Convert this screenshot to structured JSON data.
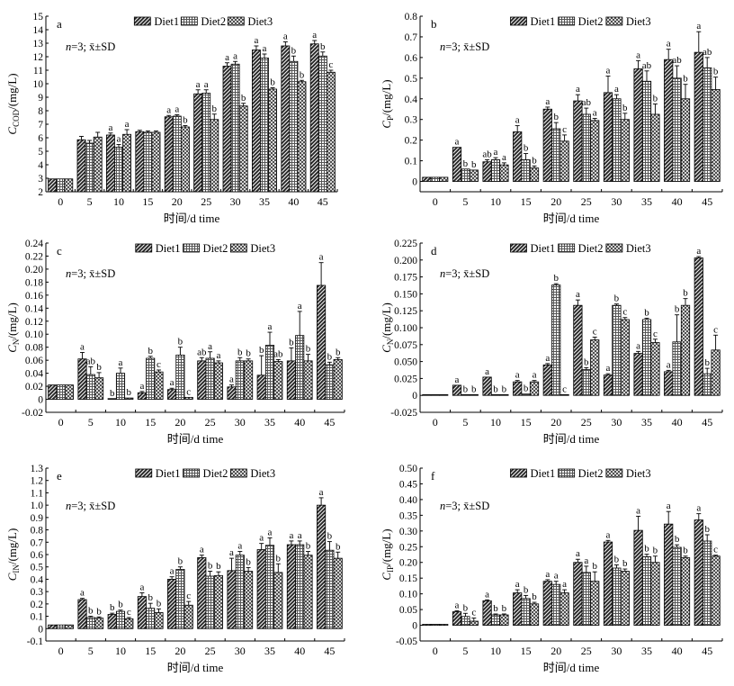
{
  "chart_data": [
    {
      "type": "bar",
      "panel_label": "a",
      "ylabel_main": "C",
      "ylabel_sub": "COD",
      "ylabel_unit": "/(mg/L)",
      "xlabel": "时间/d time",
      "annotation_n": "n",
      "annotation_rest": "=3; x̄±SD",
      "categories": [
        "0",
        "5",
        "10",
        "15",
        "20",
        "25",
        "30",
        "35",
        "40",
        "45"
      ],
      "ylim": [
        2,
        15
      ],
      "yticks": [
        "2",
        "3",
        "4",
        "5",
        "6",
        "7",
        "8",
        "9",
        "10",
        "11",
        "12",
        "13",
        "14",
        "15"
      ],
      "legend": [
        "Diet1",
        "Diet2",
        "Diet3"
      ],
      "series": [
        {
          "name": "Diet1",
          "values": [
            2.95,
            5.85,
            6.2,
            6.45,
            7.55,
            9.25,
            11.3,
            12.5,
            12.8,
            12.95
          ],
          "errors": [
            0,
            0.25,
            0.15,
            0.1,
            0.1,
            0.3,
            0.25,
            0.3,
            0.3,
            0.25
          ],
          "letters": [
            "",
            "",
            "a",
            "",
            "a",
            "a",
            "a",
            "a",
            "a",
            "a"
          ]
        },
        {
          "name": "Diet2",
          "values": [
            2.95,
            5.6,
            5.3,
            6.4,
            7.6,
            9.3,
            11.45,
            11.9,
            11.65,
            12.05
          ],
          "errors": [
            0,
            0.2,
            0.2,
            0.1,
            0.1,
            0.25,
            0.2,
            0.3,
            0.4,
            0.3
          ],
          "letters": [
            "",
            "",
            "a",
            "",
            "a",
            "a",
            "a",
            "a",
            "b",
            "b"
          ]
        },
        {
          "name": "Diet3",
          "values": [
            2.95,
            6.05,
            6.25,
            6.4,
            6.8,
            7.35,
            8.35,
            9.6,
            10.15,
            10.85
          ],
          "errors": [
            0,
            0.35,
            0.35,
            0.1,
            0.1,
            0.4,
            0.2,
            0.1,
            0.1,
            0.15
          ],
          "letters": [
            "",
            "",
            "a",
            "",
            "b",
            "b",
            "b",
            "b",
            "b",
            "c"
          ]
        }
      ]
    },
    {
      "type": "bar",
      "panel_label": "b",
      "ylabel_main": "C",
      "ylabel_sub": "P",
      "ylabel_unit": "/(mg/L)",
      "xlabel": "时间/d time",
      "annotation_n": "n",
      "annotation_rest": "=3; x̄±SD",
      "categories": [
        "0",
        "5",
        "10",
        "15",
        "20",
        "25",
        "30",
        "35",
        "40",
        "45"
      ],
      "ylim": [
        -0.05,
        0.8
      ],
      "yticks": [
        "0",
        "0.1",
        "0.2",
        "0.3",
        "0.4",
        "0.5",
        "0.6",
        "0.7",
        "0.8"
      ],
      "legend": [
        "Diet1",
        "Diet2",
        "Diet3"
      ],
      "series": [
        {
          "name": "Diet1",
          "values": [
            0.02,
            0.165,
            0.095,
            0.24,
            0.35,
            0.39,
            0.43,
            0.545,
            0.59,
            0.625
          ],
          "errors": [
            0,
            0,
            0.01,
            0.03,
            0.01,
            0.03,
            0.08,
            0.04,
            0.05,
            0.1
          ],
          "letters": [
            "",
            "a",
            "ab",
            "a",
            "a",
            "a",
            "a",
            "a",
            "a",
            "a"
          ]
        },
        {
          "name": "Diet2",
          "values": [
            0.02,
            0.06,
            0.105,
            0.105,
            0.255,
            0.325,
            0.4,
            0.485,
            0.5,
            0.55
          ],
          "errors": [
            0,
            0,
            0.01,
            0.03,
            0.03,
            0.03,
            0.02,
            0.05,
            0.06,
            0.05
          ],
          "letters": [
            "",
            "b",
            "a",
            "b",
            "b",
            "ab",
            "a",
            "ab",
            "ab",
            "ab"
          ]
        },
        {
          "name": "Diet3",
          "values": [
            0.02,
            0.055,
            0.08,
            0.065,
            0.195,
            0.295,
            0.3,
            0.325,
            0.4,
            0.445
          ],
          "errors": [
            0,
            0,
            0.01,
            0.01,
            0.03,
            0.01,
            0.03,
            0.05,
            0.07,
            0.06
          ],
          "letters": [
            "",
            "b",
            "a",
            "b",
            "c",
            "a",
            "b",
            "b",
            "b",
            "b"
          ]
        }
      ]
    },
    {
      "type": "bar",
      "panel_label": "c",
      "ylabel_main": "C",
      "ylabel_sub": "N",
      "ylabel_unit": "/(mg/L)",
      "xlabel": "时间/d time",
      "annotation_n": "n",
      "annotation_rest": "=3; x̄±SD",
      "categories": [
        "0",
        "5",
        "10",
        "15",
        "20",
        "25",
        "30",
        "35",
        "40",
        "45"
      ],
      "ylim": [
        -0.02,
        0.24
      ],
      "yticks": [
        "-0.02",
        "0",
        "0.02",
        "0.04",
        "0.06",
        "0.08",
        "0.10",
        "0.12",
        "0.14",
        "0.16",
        "0.18",
        "0.20",
        "0.22",
        "0.24"
      ],
      "legend": [
        "Diet1",
        "Diet2",
        "Diet3"
      ],
      "series": [
        {
          "name": "Diet1",
          "values": [
            0.022,
            0.062,
            0.001,
            0.01,
            0.015,
            0.059,
            0.019,
            0.037,
            0.059,
            0.175
          ],
          "errors": [
            0,
            0.01,
            0,
            0.002,
            0.002,
            0.005,
            0.003,
            0.03,
            0.02,
            0.035
          ],
          "letters": [
            "",
            "a",
            "b",
            "a",
            "a",
            "ab",
            "a",
            "b",
            "b",
            "a"
          ]
        },
        {
          "name": "Diet2",
          "values": [
            0.022,
            0.038,
            0.04,
            0.063,
            0.068,
            0.063,
            0.059,
            0.083,
            0.098,
            0.053
          ],
          "errors": [
            0,
            0.012,
            0.008,
            0.003,
            0.012,
            0.01,
            0.005,
            0.02,
            0.037,
            0.004
          ],
          "letters": [
            "",
            "ab",
            "a",
            "b",
            "b",
            "a",
            "b",
            "a",
            "a",
            "b"
          ]
        },
        {
          "name": "Diet3",
          "values": [
            0.022,
            0.033,
            0.002,
            0.042,
            0.003,
            0.056,
            0.059,
            0.058,
            0.059,
            0.061
          ],
          "errors": [
            0,
            0.008,
            0,
            0.003,
            0,
            0.003,
            0.003,
            0.003,
            0.01,
            0.003
          ],
          "letters": [
            "",
            "b",
            "b",
            "c",
            "c",
            "a",
            "b",
            "ab",
            "b",
            "b"
          ]
        }
      ]
    },
    {
      "type": "bar",
      "panel_label": "d",
      "ylabel_main": "C",
      "ylabel_sub": "N",
      "ylabel_unit": "/(mg/L)",
      "xlabel": "时间/d time",
      "annotation_n": "n",
      "annotation_rest": "=3; x̄±SD",
      "categories": [
        "0",
        "5",
        "10",
        "15",
        "20",
        "25",
        "30",
        "35",
        "40",
        "45"
      ],
      "ylim": [
        -0.025,
        0.225
      ],
      "yticks": [
        "-0.025",
        "0",
        "0.025",
        "0.050",
        "0.075",
        "0.100",
        "0.125",
        "0.150",
        "0.175",
        "0.200",
        "0.225"
      ],
      "legend": [
        "Diet1",
        "Diet2",
        "Diet3"
      ],
      "series": [
        {
          "name": "Diet1",
          "values": [
            0,
            0.015,
            0.027,
            0.02,
            0.045,
            0.133,
            0.03,
            0.062,
            0.035,
            0.203
          ],
          "errors": [
            0,
            0,
            0,
            0.002,
            0.002,
            0.008,
            0.002,
            0.003,
            0.002,
            0.002
          ],
          "letters": [
            "",
            "a",
            "a",
            "a",
            "a",
            "a",
            "a",
            "a",
            "a",
            "a"
          ]
        },
        {
          "name": "Diet2",
          "values": [
            0,
            0.001,
            0.001,
            0.002,
            0.163,
            0.038,
            0.133,
            0.112,
            0.079,
            0.032
          ],
          "errors": [
            0,
            0,
            0,
            0,
            0.002,
            0.003,
            0.002,
            0.002,
            0.04,
            0.008
          ],
          "letters": [
            "",
            "b",
            "b",
            "b",
            "b",
            "b",
            "b",
            "b",
            "b",
            "b"
          ]
        },
        {
          "name": "Diet3",
          "values": [
            0,
            0.001,
            0.001,
            0.02,
            0.001,
            0.082,
            0.112,
            0.078,
            0.133,
            0.067
          ],
          "errors": [
            0,
            0,
            0,
            0.002,
            0,
            0.004,
            0.003,
            0.005,
            0.01,
            0.022
          ],
          "letters": [
            "",
            "b",
            "b",
            "a",
            "c",
            "c",
            "c",
            "c",
            "b",
            "c"
          ]
        }
      ]
    },
    {
      "type": "bar",
      "panel_label": "e",
      "ylabel_main": "C",
      "ylabel_sub": "IN",
      "ylabel_unit": "/(mg/L)",
      "xlabel": "时间/d time",
      "annotation_n": "n",
      "annotation_rest": "=3; x̄±SD",
      "categories": [
        "0",
        "5",
        "10",
        "15",
        "20",
        "25",
        "30",
        "35",
        "40",
        "45"
      ],
      "ylim": [
        -0.1,
        1.3
      ],
      "yticks": [
        "-0.1",
        "0",
        "0.1",
        "0.2",
        "0.3",
        "0.4",
        "0.5",
        "0.6",
        "0.7",
        "0.8",
        "0.9",
        "1.0",
        "1.1",
        "1.2",
        "1.3"
      ],
      "legend": [
        "Diet1",
        "Diet2",
        "Diet3"
      ],
      "series": [
        {
          "name": "Diet1",
          "values": [
            0.03,
            0.235,
            0.115,
            0.26,
            0.4,
            0.575,
            0.47,
            0.64,
            0.68,
            1.0
          ],
          "errors": [
            0,
            0.01,
            0.01,
            0.03,
            0.02,
            0.02,
            0.1,
            0.05,
            0.03,
            0.06
          ],
          "letters": [
            "",
            "a",
            "b",
            "a",
            "a",
            "a",
            "a",
            "a",
            "a",
            "a"
          ]
        },
        {
          "name": "Diet2",
          "values": [
            0.03,
            0.09,
            0.14,
            0.165,
            0.48,
            0.425,
            0.595,
            0.675,
            0.68,
            0.635
          ],
          "errors": [
            0,
            0.01,
            0.01,
            0.04,
            0.02,
            0.04,
            0.03,
            0.06,
            0.03,
            0.07
          ],
          "letters": [
            "",
            "b",
            "b",
            "b",
            "b",
            "b",
            "a",
            "a",
            "a",
            "b"
          ]
        },
        {
          "name": "Diet3",
          "values": [
            0.03,
            0.085,
            0.08,
            0.13,
            0.19,
            0.43,
            0.465,
            0.455,
            0.595,
            0.57
          ],
          "errors": [
            0,
            0.01,
            0.01,
            0.03,
            0.03,
            0.03,
            0.03,
            0.07,
            0.03,
            0.05
          ],
          "letters": [
            "",
            "b",
            "c",
            "b",
            "c",
            "b",
            "b",
            "b",
            "b",
            "b"
          ]
        }
      ]
    },
    {
      "type": "bar",
      "panel_label": "f",
      "ylabel_main": "C",
      "ylabel_sub": "IP",
      "ylabel_unit": "/(mg/L)",
      "xlabel": "时间/d time",
      "annotation_n": "n",
      "annotation_rest": "=3; x̄±SD",
      "categories": [
        "0",
        "5",
        "10",
        "15",
        "20",
        "25",
        "30",
        "35",
        "40",
        "45"
      ],
      "ylim": [
        -0.05,
        0.5
      ],
      "yticks": [
        "-0.05",
        "0",
        "0.05",
        "0.10",
        "0.15",
        "0.20",
        "0.25",
        "0.30",
        "0.35",
        "0.40",
        "0.45",
        "0.50"
      ],
      "legend": [
        "Diet1",
        "Diet2",
        "Diet3"
      ],
      "series": [
        {
          "name": "Diet1",
          "values": [
            0.003,
            0.043,
            0.078,
            0.103,
            0.14,
            0.2,
            0.265,
            0.302,
            0.322,
            0.335
          ],
          "errors": [
            0,
            0.003,
            0.003,
            0.01,
            0.005,
            0.01,
            0.005,
            0.045,
            0.04,
            0.02
          ],
          "letters": [
            "",
            "a",
            "a",
            "a",
            "a",
            "a",
            "a",
            "a",
            "a",
            "a"
          ]
        },
        {
          "name": "Diet2",
          "values": [
            0.003,
            0.028,
            0.033,
            0.085,
            0.13,
            0.168,
            0.182,
            0.218,
            0.248,
            0.268
          ],
          "errors": [
            0,
            0.01,
            0.003,
            0.01,
            0.01,
            0.02,
            0.01,
            0.008,
            0.008,
            0.02
          ],
          "letters": [
            "",
            "b",
            "b",
            "b",
            "a",
            "a",
            "b",
            "b",
            "b",
            "b"
          ]
        },
        {
          "name": "Diet3",
          "values": [
            0.003,
            0.013,
            0.033,
            0.068,
            0.103,
            0.14,
            0.172,
            0.2,
            0.215,
            0.22
          ],
          "errors": [
            0,
            0.01,
            0.003,
            0.005,
            0.01,
            0.03,
            0.007,
            0.02,
            0.005,
            0.003
          ],
          "letters": [
            "",
            "c",
            "b",
            "b",
            "a",
            "b",
            "b",
            "b",
            "b",
            "c"
          ]
        }
      ]
    }
  ]
}
